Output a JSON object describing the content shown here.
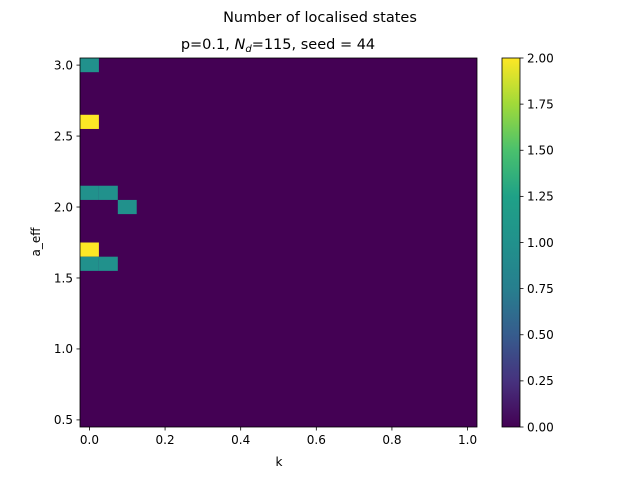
{
  "chart_data": {
    "type": "heatmap",
    "suptitle": "Number of localised states",
    "title_prefix": "p=0.1, ",
    "title_var": "N",
    "title_sub": "d",
    "title_suffix": "=115, seed = 44",
    "xlabel": "k",
    "ylabel": "a_eff",
    "x_ticks": [
      "0.0",
      "0.2",
      "0.4",
      "0.6",
      "0.8",
      "1.0"
    ],
    "y_ticks": [
      "0.5",
      "1.0",
      "1.5",
      "2.0",
      "2.5",
      "3.0"
    ],
    "xlim": [
      -0.025,
      1.025
    ],
    "ylim": [
      0.45,
      3.05
    ],
    "cell_width": 0.05,
    "cell_height": 0.1,
    "background_value": 0,
    "cells": [
      {
        "k": 0.0,
        "a": 3.0,
        "value": 1
      },
      {
        "k": 0.0,
        "a": 2.6,
        "value": 2
      },
      {
        "k": 0.0,
        "a": 2.1,
        "value": 1
      },
      {
        "k": 0.05,
        "a": 2.1,
        "value": 1
      },
      {
        "k": 0.1,
        "a": 2.0,
        "value": 1
      },
      {
        "k": 0.0,
        "a": 1.7,
        "value": 2
      },
      {
        "k": 0.0,
        "a": 1.6,
        "value": 1
      },
      {
        "k": 0.05,
        "a": 1.6,
        "value": 1
      }
    ],
    "colorbar": {
      "min": 0,
      "max": 2,
      "ticks": [
        "0.00",
        "0.25",
        "0.50",
        "0.75",
        "1.00",
        "1.25",
        "1.50",
        "1.75",
        "2.00"
      ],
      "colormap": "viridis"
    },
    "colors": {
      "low": "#440154",
      "mid": "#21918c",
      "high": "#fde725"
    }
  }
}
